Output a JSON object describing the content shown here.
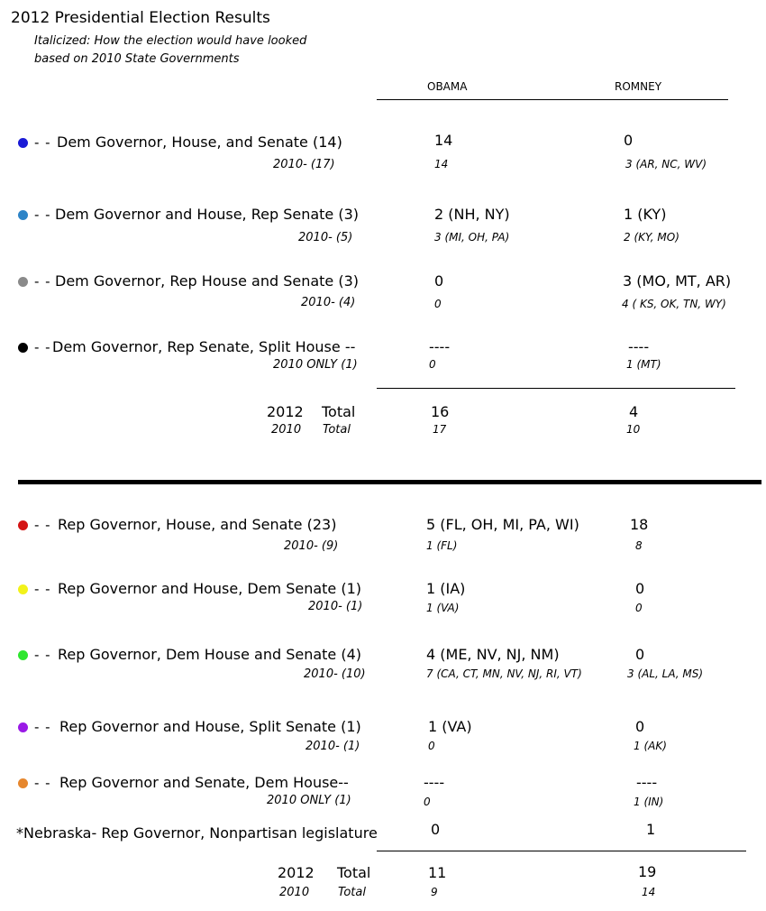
{
  "title": "2012 Presidential Election Results",
  "subtitle_line1": "Italicized: How the election would have looked",
  "subtitle_line2": "based on 2010 State Governments",
  "columns": {
    "obama": "OBAMA",
    "romney": "ROMNEY"
  },
  "dash": "- -",
  "dem_rows": [
    {
      "color": "#1a1ad6",
      "label": "Dem Governor, House, and Senate (14)",
      "sub": "2010-  (17)",
      "obama": "14",
      "romney": "0",
      "obama_2010": "14",
      "romney_2010": "3 (AR, NC, WV)"
    },
    {
      "color": "#2d84c7",
      "label": "Dem Governor and House, Rep Senate (3)",
      "sub": "2010-  (5)",
      "obama": "2 (NH, NY)",
      "romney": "1 (KY)",
      "obama_2010": "3 (MI, OH, PA)",
      "romney_2010": "2 (KY, MO)"
    },
    {
      "color": "#8a8a8a",
      "label": "Dem Governor, Rep House and Senate (3)",
      "sub": "2010-  (4)",
      "obama": "0",
      "romney": "3 (MO, MT, AR)",
      "obama_2010": "0",
      "romney_2010": "4 ( KS, OK, TN, WY)"
    },
    {
      "color": "#000000",
      "label": "Dem Governor, Rep Senate, Split House --",
      "sub": "2010 ONLY  (1)",
      "obama": "----",
      "romney": "----",
      "obama_2010": "0",
      "romney_2010": "1 (MT)"
    }
  ],
  "dem_total": {
    "year": "2012",
    "word": "Total",
    "obama": "16",
    "romney": "4",
    "year_2010": "2010",
    "word_2010": "Total",
    "obama_2010": "17",
    "romney_2010": "10"
  },
  "rep_rows": [
    {
      "color": "#d41414",
      "label": "Rep Governor, House, and Senate (23)",
      "sub": "2010- (9)",
      "obama": "5 (FL, OH, MI, PA, WI)",
      "romney": "18",
      "obama_2010": "1 (FL)",
      "romney_2010": "8"
    },
    {
      "color": "#f2f21a",
      "label": "Rep Governor and House, Dem Senate (1)",
      "sub": "2010- (1)",
      "obama": "1 (IA)",
      "romney": "0",
      "obama_2010": "1 (VA)",
      "romney_2010": "0"
    },
    {
      "color": "#2ee62e",
      "label": "Rep Governor, Dem House and Senate (4)",
      "sub": "2010- (10)",
      "obama": "4 (ME, NV, NJ, NM)",
      "romney": "0",
      "obama_2010": "7 (CA, CT, MN, NV, NJ, RI, VT)",
      "romney_2010": "3 (AL, LA, MS)"
    },
    {
      "color": "#9a1ae6",
      "label": "Rep Governor and House, Split Senate (1)",
      "sub": "2010- (1)",
      "obama": "1 (VA)",
      "romney": "0",
      "obama_2010": "0",
      "romney_2010": "1 (AK)"
    },
    {
      "color": "#e6872e",
      "label": "Rep Governor and Senate, Dem House--",
      "sub": "2010 ONLY (1)",
      "obama": "----",
      "romney": "----",
      "obama_2010": "0",
      "romney_2010": "1 (IN)"
    }
  ],
  "nebraska": {
    "label": "*Nebraska- Rep Governor, Nonpartisan legislature",
    "obama": "0",
    "romney": "1"
  },
  "rep_total": {
    "year": "2012",
    "word": "Total",
    "obama": "11",
    "romney": "19",
    "year_2010": "2010",
    "word_2010": "Total",
    "obama_2010": "9",
    "romney_2010": "14"
  }
}
